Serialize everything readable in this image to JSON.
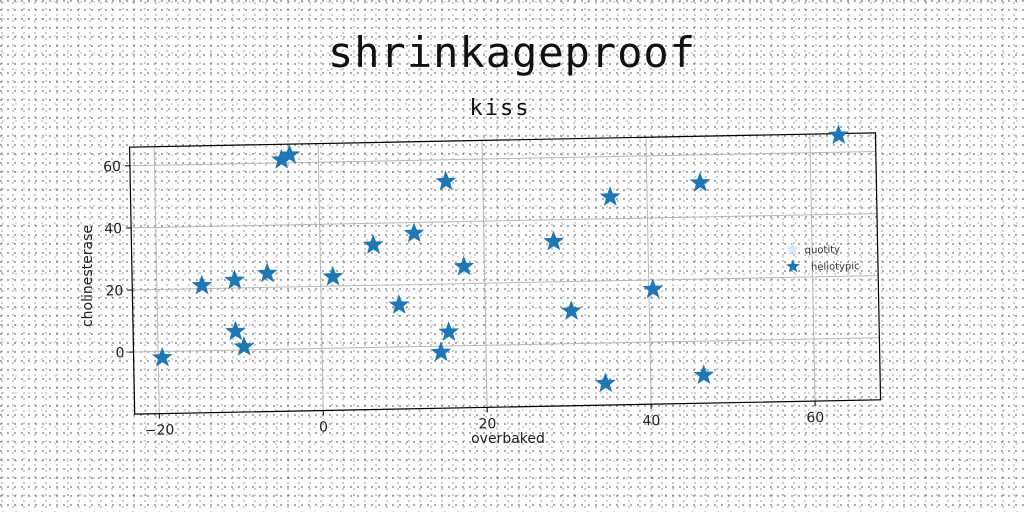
{
  "figure": {
    "title": "shrinkageproof"
  },
  "chart_data": {
    "type": "scatter",
    "title": "kiss",
    "xlabel": "overbaked",
    "ylabel": "cholinesterase",
    "xlim": [
      -23,
      68
    ],
    "ylim": [
      -20,
      66
    ],
    "xticks": [
      -20,
      0,
      20,
      40,
      60
    ],
    "yticks": [
      0,
      20,
      40,
      60
    ],
    "grid": true,
    "legend": {
      "placement": "right",
      "entries": [
        "quotity",
        "heliotypic"
      ]
    },
    "series": [
      {
        "name": "quotity",
        "marker": "star",
        "color": "#d6e6f5",
        "points": []
      },
      {
        "name": "heliotypic",
        "marker": "star",
        "color": "#1f77b4",
        "points": [
          [
            -19.5,
            -2
          ],
          [
            -14.5,
            21
          ],
          [
            -10.5,
            22.5
          ],
          [
            -10.5,
            6
          ],
          [
            -9.5,
            1
          ],
          [
            -6.5,
            24.5
          ],
          [
            -4.5,
            61
          ],
          [
            -3.5,
            62.5
          ],
          [
            1.5,
            23
          ],
          [
            6.5,
            33
          ],
          [
            9.5,
            13.5
          ],
          [
            11.5,
            36.5
          ],
          [
            14.5,
            -2
          ],
          [
            15.5,
            4.5
          ],
          [
            15.5,
            53
          ],
          [
            17.5,
            25.5
          ],
          [
            28.5,
            33
          ],
          [
            30.5,
            10.5
          ],
          [
            34.5,
            -13
          ],
          [
            35.5,
            47
          ],
          [
            40.5,
            17
          ],
          [
            46.5,
            -11
          ],
          [
            46.5,
            51
          ],
          [
            63.5,
            65.5
          ]
        ]
      }
    ]
  }
}
